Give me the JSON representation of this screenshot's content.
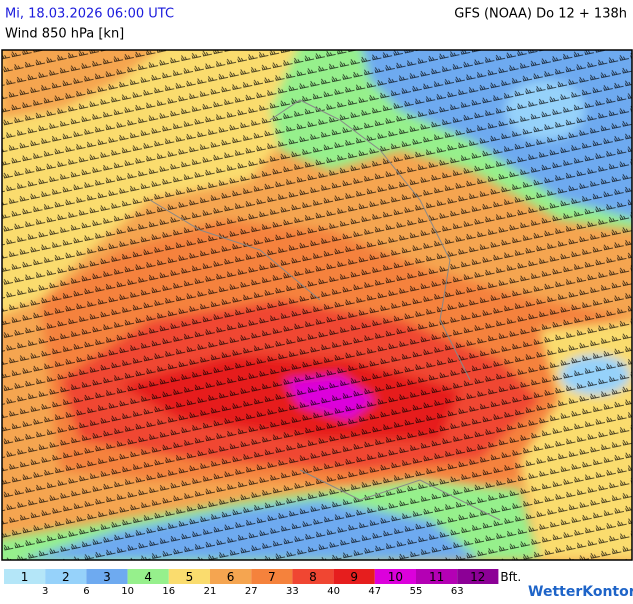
{
  "header": {
    "datetime": "Mi, 18.03.2026 06:00 UTC",
    "parameter": "Wind 850 hPa [kn]",
    "model": "GFS (NOAA) Do 12 + 138h"
  },
  "legend": {
    "bft": [
      1,
      2,
      3,
      4,
      5,
      6,
      7,
      8,
      9,
      10,
      11,
      12
    ],
    "colors": [
      "#b4e6f8",
      "#96d2fa",
      "#6eaaf0",
      "#96f08c",
      "#fadc6e",
      "#f5a550",
      "#f5823c",
      "#f04632",
      "#e61e1e",
      "#dc00dc",
      "#b400b4",
      "#8c0096"
    ],
    "knots": [
      3,
      6,
      10,
      16,
      21,
      27,
      33,
      40,
      47,
      55,
      63
    ],
    "unit": "Bft."
  },
  "logo": "WetterKontor"
}
